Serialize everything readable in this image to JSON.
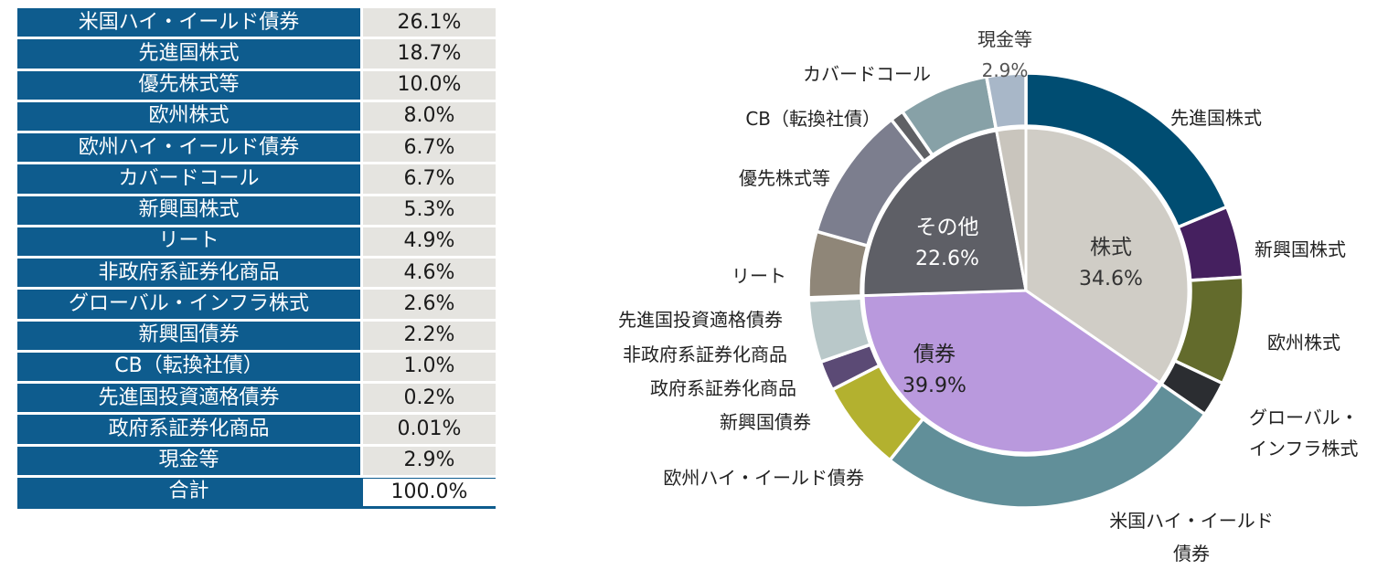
{
  "colors": {
    "table_label_bg": "#0e5c8e",
    "table_value_bg": "#e5e4e0"
  },
  "table": {
    "rows": [
      {
        "label": "米国ハイ・イールド債券",
        "value": "26.1%"
      },
      {
        "label": "先進国株式",
        "value": "18.7%"
      },
      {
        "label": "優先株式等",
        "value": "10.0%"
      },
      {
        "label": "欧州株式",
        "value": "8.0%"
      },
      {
        "label": "欧州ハイ・イールド債券",
        "value": "6.7%"
      },
      {
        "label": "カバードコール",
        "value": "6.7%"
      },
      {
        "label": "新興国株式",
        "value": "5.3%"
      },
      {
        "label": "リート",
        "value": "4.9%"
      },
      {
        "label": "非政府系証券化商品",
        "value": "4.6%"
      },
      {
        "label": "グローバル・インフラ株式",
        "value": "2.6%"
      },
      {
        "label": "新興国債券",
        "value": "2.2%"
      },
      {
        "label": "CB（転換社債）",
        "value": "1.0%"
      },
      {
        "label": "先進国投資適格債券",
        "value": "0.2%"
      },
      {
        "label": "政府系証券化商品",
        "value": "0.01%"
      },
      {
        "label": "現金等",
        "value": "2.9%"
      },
      {
        "label": "合計",
        "value": "100.0%"
      }
    ]
  },
  "chart_data": {
    "type": "pie",
    "variant": "two-level donut",
    "start_angle_deg": 0,
    "direction": "clockwise",
    "inner": [
      {
        "name": "株式",
        "value": 34.6,
        "label": "34.6%",
        "color": "#d0cdc6"
      },
      {
        "name": "債券",
        "value": 39.9,
        "label": "39.9%",
        "color": "#b999dd"
      },
      {
        "name": "その他",
        "value": 22.6,
        "label": "22.6%",
        "color": "#5e5f66"
      },
      {
        "name": "現金等",
        "value": 2.9,
        "label": "",
        "color": "#c9c5bd"
      }
    ],
    "outer": [
      {
        "name": "先進国株式",
        "value": 18.7,
        "color": "#004d72"
      },
      {
        "name": "新興国株式",
        "value": 5.3,
        "color": "#45205f"
      },
      {
        "name": "欧州株式",
        "value": 8.0,
        "color": "#636b2c"
      },
      {
        "name": "グローバル・インフラ株式",
        "value": 2.6,
        "color": "#2b2d31"
      },
      {
        "name": "米国ハイ・イールド債券",
        "value": 26.1,
        "color": "#618f99"
      },
      {
        "name": "欧州ハイ・イールド債券",
        "value": 6.7,
        "color": "#b3b12f"
      },
      {
        "name": "新興国債券",
        "value": 2.2,
        "color": "#5b4a75"
      },
      {
        "name": "政府系証券化商品",
        "value": 0.01,
        "color": "#a8bbbe"
      },
      {
        "name": "非政府系証券化商品",
        "value": 4.6,
        "color": "#b9c8c9"
      },
      {
        "name": "先進国投資適格債券",
        "value": 0.2,
        "color": "#6e8d99"
      },
      {
        "name": "リート",
        "value": 4.9,
        "color": "#8f8678"
      },
      {
        "name": "優先株式等",
        "value": 10.0,
        "color": "#7c7e8e"
      },
      {
        "name": "CB（転換社債）",
        "value": 1.0,
        "color": "#5f6064"
      },
      {
        "name": "カバードコール",
        "value": 6.7,
        "color": "#87a1a7"
      },
      {
        "name": "現金等",
        "value": 2.9,
        "color": "#a8b7c8"
      }
    ],
    "callouts": [
      {
        "lines": [
          "現金等",
          "2.9%"
        ],
        "colors": [
          "#333333",
          "#555555"
        ]
      },
      {
        "lines": [
          "カバードコール"
        ]
      },
      {
        "lines": [
          "CB（転換社債）"
        ]
      },
      {
        "lines": [
          "優先株式等"
        ]
      },
      {
        "lines": [
          "リート"
        ]
      },
      {
        "lines": [
          "先進国投資適格債券"
        ]
      },
      {
        "lines": [
          "非政府系証券化商品"
        ]
      },
      {
        "lines": [
          "政府系証券化商品"
        ]
      },
      {
        "lines": [
          "新興国債券"
        ]
      },
      {
        "lines": [
          "欧州ハイ・イールド債券"
        ]
      },
      {
        "lines": [
          "先進国株式"
        ]
      },
      {
        "lines": [
          "新興国株式"
        ]
      },
      {
        "lines": [
          "欧州株式"
        ]
      },
      {
        "lines": [
          "グローバル・",
          "インフラ株式"
        ]
      },
      {
        "lines": [
          "米国ハイ・イールド",
          "債券"
        ]
      }
    ]
  }
}
